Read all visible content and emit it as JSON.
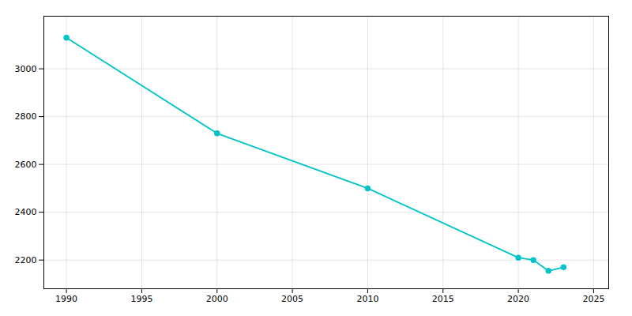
{
  "chart_data": {
    "type": "line",
    "x": [
      1990,
      2000,
      2010,
      2020,
      2021,
      2022,
      2023
    ],
    "values": [
      3130,
      2730,
      2500,
      2210,
      2200,
      2155,
      2170
    ],
    "color": "#00C5C8",
    "marker": "circle",
    "xlim": [
      1988.5,
      2026
    ],
    "ylim": [
      2080,
      3220
    ],
    "xticks": [
      1990,
      1995,
      2000,
      2005,
      2010,
      2015,
      2020,
      2025
    ],
    "yticks": [
      2200,
      2400,
      2600,
      2800,
      3000
    ],
    "grid": true
  }
}
